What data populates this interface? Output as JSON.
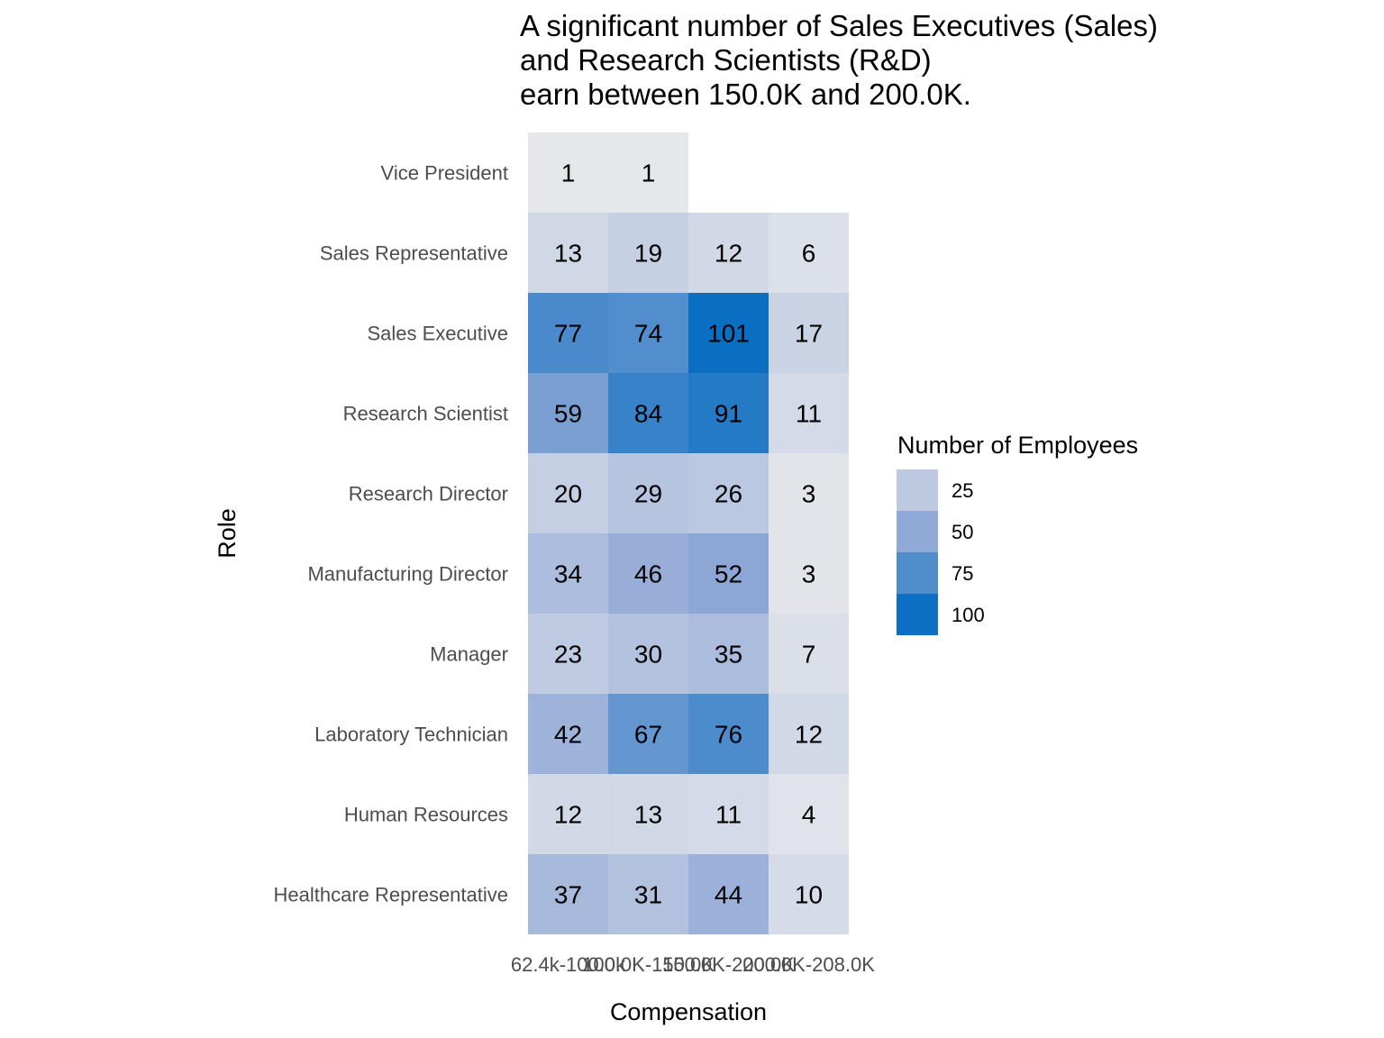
{
  "chart_data": {
    "type": "heatmap",
    "title_lines": [
      "A significant number of Sales Executives (Sales)",
      "and Research Scientists (R&D)",
      "earn between 150.0K and 200.0K."
    ],
    "xlabel": "Compensation",
    "ylabel": "Role",
    "x_categories": [
      "62.4k-100.0k",
      "100.0K-150.0K",
      "150.0K-200.0K",
      "200.0K-208.0K"
    ],
    "y_categories": [
      "Vice President",
      "Sales Representative",
      "Sales Executive",
      "Research Scientist",
      "Research Director",
      "Manufacturing Director",
      "Manager",
      "Laboratory Technician",
      "Human Resources",
      "Healthcare Representative"
    ],
    "values": [
      [
        1,
        1,
        null,
        null
      ],
      [
        13,
        19,
        12,
        6
      ],
      [
        77,
        74,
        101,
        17
      ],
      [
        59,
        84,
        91,
        11
      ],
      [
        20,
        29,
        26,
        3
      ],
      [
        34,
        46,
        52,
        3
      ],
      [
        23,
        30,
        35,
        7
      ],
      [
        42,
        67,
        76,
        12
      ],
      [
        12,
        13,
        11,
        4
      ],
      [
        37,
        31,
        44,
        10
      ]
    ],
    "legend": {
      "title": "Number of Employees",
      "breaks": [
        25,
        50,
        75,
        100
      ],
      "position": "right"
    },
    "color_scale": {
      "low_value": 1,
      "high_value": 101,
      "low_color": "#e5e7eb",
      "mid_color": "#8fa8d6",
      "high_color": "#0a6fc2"
    },
    "grid": false
  }
}
